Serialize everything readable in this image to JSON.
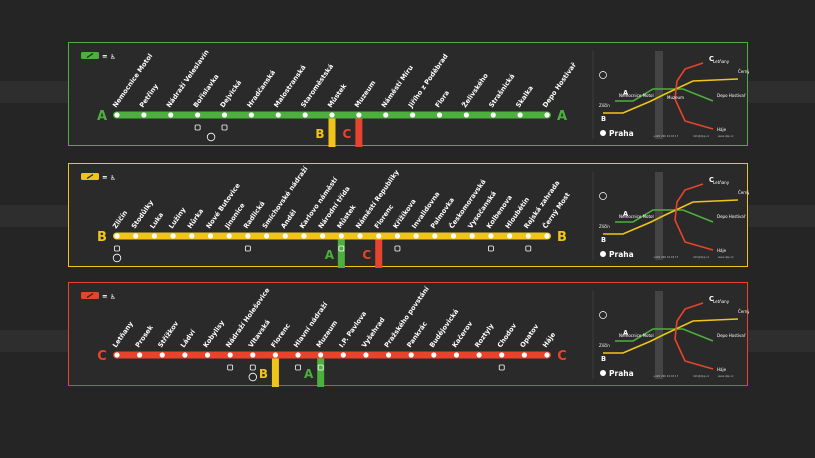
{
  "colors": {
    "A": "#4caf3e",
    "B": "#f0c419",
    "C": "#e8442d",
    "background": "#252525",
    "panel": "#2a2a2a"
  },
  "legend_symbol": "=",
  "lines": [
    {
      "id": "A",
      "letter": "A",
      "color": "#4caf3e",
      "stations": [
        "Nemocnice Motol",
        "Petřiny",
        "Nádraží Veleslavín",
        "Bořislavka",
        "Dejvická",
        "Hradčanská",
        "Malostranská",
        "Staroměstská",
        "Můstek",
        "Muzeum",
        "Náměstí Míru",
        "Jiřího z Poděbrad",
        "Flora",
        "Želivského",
        "Strašnická",
        "Skalka",
        "Depo Hostivař"
      ],
      "transfers": [
        {
          "at": 8,
          "letter": "B",
          "color": "#f0c419"
        },
        {
          "at": 9,
          "letter": "C",
          "color": "#e8442d"
        }
      ],
      "map_labels": {
        "top": "Letňany",
        "right1": "Černý Most",
        "right2": "Depo Hostivař",
        "bottom": "Háje",
        "left1": "Nemocnice Motol",
        "left2": "Zličín",
        "center": "Muzeum"
      }
    },
    {
      "id": "B",
      "letter": "B",
      "color": "#f0c419",
      "stations": [
        "Zličín",
        "Stodůlky",
        "Luka",
        "Lužiny",
        "Hůrka",
        "Nové Butovice",
        "Jinonice",
        "Radlická",
        "Smíchovské nádraží",
        "Anděl",
        "Karlovo náměstí",
        "Národní třída",
        "Můstek",
        "Náměstí Republiky",
        "Florenc",
        "Křižíkova",
        "Invalidovna",
        "Palmovka",
        "Českomoravská",
        "Vysočanská",
        "Kolbenova",
        "Hloubětín",
        "Rajská zahrada",
        "Černý Most"
      ],
      "transfers": [
        {
          "at": 12,
          "letter": "A",
          "color": "#4caf3e"
        },
        {
          "at": 14,
          "letter": "C",
          "color": "#e8442d"
        }
      ],
      "map_labels": {
        "top": "Letňany",
        "right1": "Černý Most",
        "right2": "Depo Hostivař",
        "bottom": "Háje",
        "left1": "Nemocnice Motol",
        "left2": "Zličín",
        "center": ""
      }
    },
    {
      "id": "C",
      "letter": "C",
      "color": "#e8442d",
      "stations": [
        "Letňany",
        "Prosek",
        "Střížkov",
        "Ládví",
        "Kobylisy",
        "Nádraží Holešovice",
        "Vltavská",
        "Florenc",
        "Hlavní nádraží",
        "Muzeum",
        "I.P. Pavlova",
        "Vyšehrad",
        "Pražského povstání",
        "Pankrác",
        "Budějovická",
        "Kačerov",
        "Roztyly",
        "Chodov",
        "Opatov",
        "Háje"
      ],
      "transfers": [
        {
          "at": 7,
          "letter": "B",
          "color": "#f0c419"
        },
        {
          "at": 9,
          "letter": "A",
          "color": "#4caf3e"
        }
      ],
      "map_labels": {
        "top": "Letňany",
        "right1": "Černý Most",
        "right2": "Depo Hostivař",
        "bottom": "Háje",
        "left1": "Nemocnice Motol",
        "left2": "Zličín",
        "center": ""
      }
    }
  ],
  "brand": "Praha",
  "contact_left": "+420 296 19 18 17",
  "contact_mid": "info@dpp.cz",
  "contact_right": "www.dpp.cz"
}
